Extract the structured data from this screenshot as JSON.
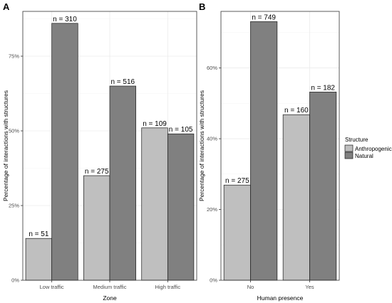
{
  "chart_data": [
    {
      "panel": "A",
      "type": "bar",
      "xlabel": "Zone",
      "ylabel": "Percentage of interactions with structures",
      "categories": [
        "Low traffic",
        "Medium traffic",
        "High traffic"
      ],
      "series": [
        {
          "name": "Anthropogenic",
          "values": [
            14,
            35,
            51
          ],
          "labels": [
            "n = 51",
            "n = 275",
            "n = 109"
          ]
        },
        {
          "name": "Natural",
          "values": [
            86,
            65,
            49
          ],
          "labels": [
            "n = 310",
            "n = 516",
            "n = 105"
          ]
        }
      ],
      "ylim": [
        0,
        90
      ],
      "yticks": [
        0,
        25,
        50,
        75
      ],
      "ytick_labels": [
        "0%",
        "25%",
        "50%",
        "75%"
      ],
      "grid": true
    },
    {
      "panel": "B",
      "type": "bar",
      "xlabel": "Human presence",
      "ylabel": "Percentage of interactions with structures",
      "categories": [
        "No",
        "Yes"
      ],
      "series": [
        {
          "name": "Anthropogenic",
          "values": [
            26.9,
            46.8
          ],
          "labels": [
            "n = 275",
            "n = 160"
          ]
        },
        {
          "name": "Natural",
          "values": [
            73.1,
            53.2
          ],
          "labels": [
            "n = 749",
            "n = 182"
          ]
        }
      ],
      "ylim": [
        0,
        76
      ],
      "yticks": [
        0,
        20,
        40,
        60
      ],
      "ytick_labels": [
        "0%",
        "20%",
        "40%",
        "60%"
      ],
      "grid": true
    }
  ],
  "legend": {
    "title": "Structure",
    "placement": "right",
    "items": [
      {
        "label": "Anthropogenic",
        "color": "#bfbfbf"
      },
      {
        "label": "Natural",
        "color": "#808080"
      }
    ]
  },
  "colors": {
    "anthropogenic": "#bfbfbf",
    "natural": "#808080",
    "outline": "#1a1a1a",
    "grid": "#ebebeb",
    "panel_border": "#333333"
  }
}
